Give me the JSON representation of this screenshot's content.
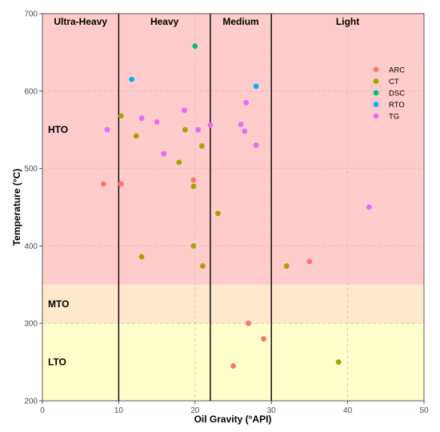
{
  "chart_data": {
    "type": "scatter",
    "xlabel": "Oil Gravity (°API)",
    "ylabel": "Temperature (°C)",
    "xlim": [
      0,
      50
    ],
    "ylim": [
      200,
      700
    ],
    "xticks": [
      0,
      10,
      20,
      30,
      40,
      50
    ],
    "yticks": [
      200,
      300,
      400,
      500,
      600,
      700
    ],
    "grid": true,
    "legend_position": "top-right",
    "bands": [
      {
        "label": "LTO",
        "from": 200,
        "to": 300,
        "color": "#ffffcc"
      },
      {
        "label": "MTO",
        "from": 300,
        "to": 350,
        "color": "#ffe8cc"
      },
      {
        "label": "HTO",
        "from": 350,
        "to": 700,
        "color": "#ffcccc"
      }
    ],
    "regions": [
      {
        "label": "Ultra-Heavy",
        "from": 0,
        "to": 10
      },
      {
        "label": "Heavy",
        "from": 10,
        "to": 22
      },
      {
        "label": "Medium",
        "from": 22,
        "to": 30
      },
      {
        "label": "Light",
        "from": 30,
        "to": 50
      }
    ],
    "dividers": [
      10,
      22,
      30
    ],
    "series": [
      {
        "name": "ARC",
        "color": "#F8766D",
        "points": [
          [
            8,
            480
          ],
          [
            10.3,
            480
          ],
          [
            19.8,
            485
          ],
          [
            27,
            300
          ],
          [
            29,
            280
          ],
          [
            25,
            245
          ],
          [
            35,
            380
          ]
        ]
      },
      {
        "name": "CT",
        "color": "#A3A500",
        "points": [
          [
            10.3,
            568
          ],
          [
            12.3,
            542
          ],
          [
            18.7,
            550
          ],
          [
            17.9,
            508
          ],
          [
            20.9,
            529
          ],
          [
            19.8,
            477
          ],
          [
            23,
            442
          ],
          [
            19.8,
            400
          ],
          [
            13,
            386
          ],
          [
            21,
            374
          ],
          [
            32,
            374
          ],
          [
            38.8,
            250
          ]
        ]
      },
      {
        "name": "DSC",
        "color": "#00BF7D",
        "points": [
          [
            20,
            658
          ]
        ]
      },
      {
        "name": "RTO",
        "color": "#00B0F6",
        "points": [
          [
            11.7,
            615
          ],
          [
            28,
            606
          ]
        ]
      },
      {
        "name": "TG",
        "color": "#E76BF3",
        "points": [
          [
            8.5,
            550
          ],
          [
            13,
            565
          ],
          [
            15,
            560
          ],
          [
            18.6,
            575
          ],
          [
            15.9,
            519
          ],
          [
            20.4,
            550
          ],
          [
            22,
            556
          ],
          [
            26,
            557
          ],
          [
            26.5,
            548
          ],
          [
            26.7,
            585
          ],
          [
            28,
            530
          ],
          [
            42.8,
            450
          ]
        ]
      }
    ]
  }
}
